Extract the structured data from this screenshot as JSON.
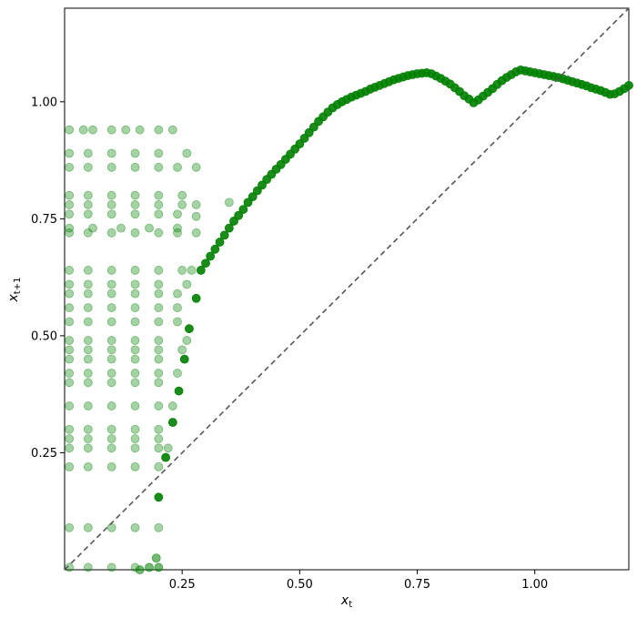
{
  "chart_data": {
    "type": "scatter",
    "title": "",
    "xlabel": "x_t",
    "ylabel": "x_{t+1}",
    "xlim": [
      0.0,
      1.2
    ],
    "ylim": [
      0.0,
      1.2
    ],
    "x_ticks": [
      "0.25",
      "0.50",
      "0.75",
      "1.00"
    ],
    "y_ticks": [
      "0.25",
      "0.50",
      "0.75",
      "1.00"
    ],
    "grid": false,
    "legend": "none",
    "colors": {
      "points": "#008000",
      "diagonal": "#555555"
    },
    "reference_line": {
      "name": "identity",
      "style": "dashed",
      "from": [
        0,
        0
      ],
      "to": [
        1.2,
        1.2
      ]
    },
    "cloud_levels": [
      0.005,
      0.09,
      0.22,
      0.26,
      0.28,
      0.3,
      0.35,
      0.39,
      0.4,
      0.42,
      0.45,
      0.47,
      0.48,
      0.49,
      0.51,
      0.53,
      0.55,
      0.56,
      0.58,
      0.59,
      0.61,
      0.64,
      0.72,
      0.73,
      0.76,
      0.77,
      0.78,
      0.79,
      0.8,
      0.86,
      0.89,
      0.94
    ],
    "series": [
      {
        "opacity": 0.35,
        "points": [
          [
            0.01,
            0.94
          ],
          [
            0.04,
            0.94
          ],
          [
            0.06,
            0.94
          ],
          [
            0.1,
            0.94
          ],
          [
            0.13,
            0.94
          ],
          [
            0.16,
            0.94
          ],
          [
            0.2,
            0.94
          ],
          [
            0.23,
            0.94
          ],
          [
            0.01,
            0.89
          ],
          [
            0.05,
            0.89
          ],
          [
            0.1,
            0.89
          ],
          [
            0.15,
            0.89
          ],
          [
            0.2,
            0.89
          ],
          [
            0.26,
            0.89
          ],
          [
            0.01,
            0.86
          ],
          [
            0.05,
            0.86
          ],
          [
            0.1,
            0.86
          ],
          [
            0.15,
            0.86
          ],
          [
            0.2,
            0.86
          ],
          [
            0.24,
            0.86
          ],
          [
            0.28,
            0.86
          ],
          [
            0.01,
            0.8
          ],
          [
            0.05,
            0.8
          ],
          [
            0.1,
            0.8
          ],
          [
            0.15,
            0.8
          ],
          [
            0.2,
            0.8
          ],
          [
            0.25,
            0.8
          ],
          [
            0.01,
            0.78
          ],
          [
            0.05,
            0.78
          ],
          [
            0.1,
            0.78
          ],
          [
            0.15,
            0.78
          ],
          [
            0.2,
            0.78
          ],
          [
            0.25,
            0.78
          ],
          [
            0.28,
            0.78
          ],
          [
            0.35,
            0.785
          ],
          [
            0.01,
            0.76
          ],
          [
            0.05,
            0.76
          ],
          [
            0.1,
            0.76
          ],
          [
            0.15,
            0.76
          ],
          [
            0.2,
            0.76
          ],
          [
            0.24,
            0.76
          ],
          [
            0.28,
            0.755
          ],
          [
            0.01,
            0.73
          ],
          [
            0.06,
            0.73
          ],
          [
            0.12,
            0.73
          ],
          [
            0.18,
            0.73
          ],
          [
            0.24,
            0.73
          ],
          [
            0.01,
            0.72
          ],
          [
            0.05,
            0.72
          ],
          [
            0.1,
            0.72
          ],
          [
            0.15,
            0.72
          ],
          [
            0.2,
            0.72
          ],
          [
            0.24,
            0.72
          ],
          [
            0.28,
            0.72
          ],
          [
            0.01,
            0.64
          ],
          [
            0.05,
            0.64
          ],
          [
            0.1,
            0.64
          ],
          [
            0.15,
            0.64
          ],
          [
            0.2,
            0.64
          ],
          [
            0.25,
            0.64
          ],
          [
            0.27,
            0.64
          ],
          [
            0.01,
            0.61
          ],
          [
            0.05,
            0.61
          ],
          [
            0.1,
            0.61
          ],
          [
            0.15,
            0.61
          ],
          [
            0.2,
            0.61
          ],
          [
            0.26,
            0.61
          ],
          [
            0.01,
            0.59
          ],
          [
            0.05,
            0.59
          ],
          [
            0.1,
            0.59
          ],
          [
            0.15,
            0.59
          ],
          [
            0.2,
            0.59
          ],
          [
            0.24,
            0.59
          ],
          [
            0.01,
            0.56
          ],
          [
            0.05,
            0.56
          ],
          [
            0.1,
            0.56
          ],
          [
            0.15,
            0.56
          ],
          [
            0.2,
            0.56
          ],
          [
            0.24,
            0.56
          ],
          [
            0.01,
            0.53
          ],
          [
            0.05,
            0.53
          ],
          [
            0.1,
            0.53
          ],
          [
            0.15,
            0.53
          ],
          [
            0.2,
            0.53
          ],
          [
            0.24,
            0.53
          ],
          [
            0.01,
            0.49
          ],
          [
            0.05,
            0.49
          ],
          [
            0.1,
            0.49
          ],
          [
            0.15,
            0.49
          ],
          [
            0.2,
            0.49
          ],
          [
            0.26,
            0.49
          ],
          [
            0.01,
            0.47
          ],
          [
            0.05,
            0.47
          ],
          [
            0.1,
            0.47
          ],
          [
            0.15,
            0.47
          ],
          [
            0.2,
            0.47
          ],
          [
            0.25,
            0.47
          ],
          [
            0.01,
            0.45
          ],
          [
            0.05,
            0.45
          ],
          [
            0.1,
            0.45
          ],
          [
            0.15,
            0.45
          ],
          [
            0.2,
            0.45
          ],
          [
            0.01,
            0.42
          ],
          [
            0.05,
            0.42
          ],
          [
            0.1,
            0.42
          ],
          [
            0.15,
            0.42
          ],
          [
            0.2,
            0.42
          ],
          [
            0.24,
            0.42
          ],
          [
            0.01,
            0.4
          ],
          [
            0.05,
            0.4
          ],
          [
            0.1,
            0.4
          ],
          [
            0.15,
            0.4
          ],
          [
            0.2,
            0.4
          ],
          [
            0.01,
            0.35
          ],
          [
            0.05,
            0.35
          ],
          [
            0.1,
            0.35
          ],
          [
            0.15,
            0.35
          ],
          [
            0.2,
            0.35
          ],
          [
            0.23,
            0.35
          ],
          [
            0.01,
            0.3
          ],
          [
            0.05,
            0.3
          ],
          [
            0.1,
            0.3
          ],
          [
            0.15,
            0.3
          ],
          [
            0.2,
            0.3
          ],
          [
            0.01,
            0.28
          ],
          [
            0.05,
            0.28
          ],
          [
            0.1,
            0.28
          ],
          [
            0.15,
            0.28
          ],
          [
            0.2,
            0.28
          ],
          [
            0.01,
            0.26
          ],
          [
            0.05,
            0.26
          ],
          [
            0.1,
            0.26
          ],
          [
            0.15,
            0.26
          ],
          [
            0.2,
            0.26
          ],
          [
            0.22,
            0.26
          ],
          [
            0.01,
            0.22
          ],
          [
            0.05,
            0.22
          ],
          [
            0.1,
            0.22
          ],
          [
            0.15,
            0.22
          ],
          [
            0.2,
            0.22
          ],
          [
            0.01,
            0.09
          ],
          [
            0.05,
            0.09
          ],
          [
            0.1,
            0.09
          ],
          [
            0.15,
            0.09
          ],
          [
            0.2,
            0.09
          ],
          [
            0.01,
            0.005
          ],
          [
            0.05,
            0.005
          ],
          [
            0.1,
            0.005
          ],
          [
            0.15,
            0.005
          ]
        ]
      },
      {
        "opacity": 0.9,
        "points": [
          [
            0.2,
            0.155
          ],
          [
            0.215,
            0.24
          ],
          [
            0.23,
            0.315
          ],
          [
            0.243,
            0.382
          ],
          [
            0.255,
            0.45
          ],
          [
            0.265,
            0.515
          ],
          [
            0.28,
            0.58
          ],
          [
            0.29,
            0.64
          ],
          [
            0.3,
            0.655
          ],
          [
            0.31,
            0.67
          ],
          [
            0.32,
            0.685
          ],
          [
            0.33,
            0.7
          ],
          [
            0.34,
            0.715
          ],
          [
            0.35,
            0.73
          ],
          [
            0.36,
            0.745
          ],
          [
            0.37,
            0.757
          ],
          [
            0.38,
            0.77
          ],
          [
            0.39,
            0.785
          ],
          [
            0.4,
            0.797
          ],
          [
            0.41,
            0.81
          ],
          [
            0.42,
            0.822
          ],
          [
            0.43,
            0.834
          ],
          [
            0.44,
            0.845
          ],
          [
            0.45,
            0.856
          ],
          [
            0.46,
            0.866
          ],
          [
            0.47,
            0.877
          ],
          [
            0.48,
            0.888
          ],
          [
            0.49,
            0.899
          ],
          [
            0.5,
            0.91
          ],
          [
            0.51,
            0.922
          ],
          [
            0.52,
            0.934
          ],
          [
            0.53,
            0.946
          ],
          [
            0.54,
            0.958
          ],
          [
            0.55,
            0.968
          ],
          [
            0.56,
            0.978
          ],
          [
            0.57,
            0.987
          ],
          [
            0.58,
            0.994
          ],
          [
            0.59,
            1.0
          ],
          [
            0.6,
            1.005
          ],
          [
            0.61,
            1.01
          ],
          [
            0.62,
            1.014
          ],
          [
            0.63,
            1.018
          ],
          [
            0.64,
            1.022
          ],
          [
            0.65,
            1.027
          ],
          [
            0.66,
            1.031
          ],
          [
            0.67,
            1.035
          ],
          [
            0.68,
            1.039
          ],
          [
            0.69,
            1.043
          ],
          [
            0.7,
            1.047
          ],
          [
            0.71,
            1.05
          ],
          [
            0.72,
            1.053
          ],
          [
            0.73,
            1.056
          ],
          [
            0.74,
            1.058
          ],
          [
            0.75,
            1.06
          ],
          [
            0.76,
            1.061
          ],
          [
            0.77,
            1.062
          ],
          [
            0.78,
            1.06
          ],
          [
            0.79,
            1.055
          ],
          [
            0.8,
            1.05
          ],
          [
            0.81,
            1.044
          ],
          [
            0.82,
            1.038
          ],
          [
            0.83,
            1.03
          ],
          [
            0.84,
            1.022
          ],
          [
            0.85,
            1.013
          ],
          [
            0.86,
            1.006
          ],
          [
            0.87,
            0.998
          ],
          [
            0.88,
            1.004
          ],
          [
            0.89,
            1.012
          ],
          [
            0.9,
            1.02
          ],
          [
            0.91,
            1.028
          ],
          [
            0.92,
            1.037
          ],
          [
            0.93,
            1.045
          ],
          [
            0.94,
            1.052
          ],
          [
            0.95,
            1.058
          ],
          [
            0.96,
            1.064
          ],
          [
            0.97,
            1.068
          ],
          [
            0.98,
            1.066
          ],
          [
            0.99,
            1.064
          ],
          [
            1.0,
            1.062
          ],
          [
            1.01,
            1.06
          ],
          [
            1.02,
            1.058
          ],
          [
            1.03,
            1.056
          ],
          [
            1.04,
            1.054
          ],
          [
            1.05,
            1.052
          ],
          [
            1.06,
            1.049
          ],
          [
            1.07,
            1.046
          ],
          [
            1.08,
            1.043
          ],
          [
            1.09,
            1.04
          ],
          [
            1.1,
            1.037
          ],
          [
            1.11,
            1.034
          ],
          [
            1.12,
            1.03
          ],
          [
            1.13,
            1.027
          ],
          [
            1.14,
            1.024
          ],
          [
            1.15,
            1.02
          ],
          [
            1.16,
            1.016
          ],
          [
            1.17,
            1.017
          ],
          [
            1.18,
            1.022
          ],
          [
            1.19,
            1.028
          ],
          [
            1.2,
            1.035
          ]
        ]
      },
      {
        "opacity": 0.55,
        "points": [
          [
            0.195,
            0.025
          ],
          [
            0.16,
            0.0
          ],
          [
            0.18,
            0.005
          ],
          [
            0.2,
            0.005
          ]
        ]
      }
    ]
  }
}
